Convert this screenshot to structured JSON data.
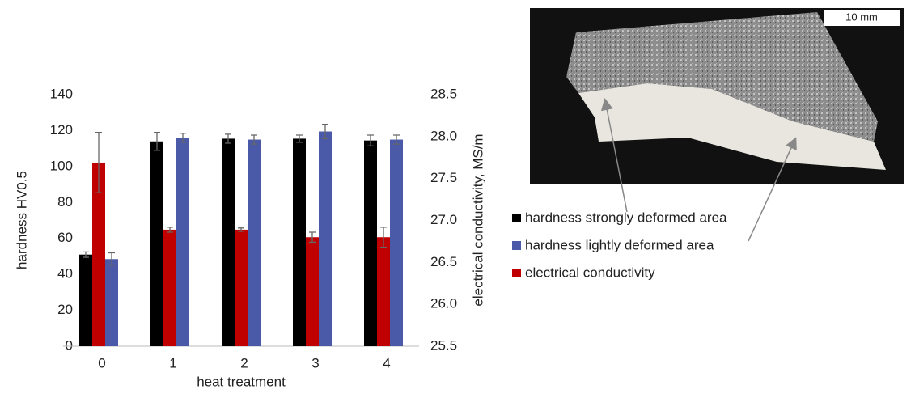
{
  "chart_data": {
    "type": "bar",
    "x_label": "heat treatment",
    "y_label": "hardness HV0.5",
    "y2_label": "electrical conductivity, MS/m",
    "categories": [
      "0",
      "1",
      "2",
      "3",
      "4"
    ],
    "ylim": [
      0,
      140
    ],
    "yticks": [
      0,
      20,
      40,
      60,
      80,
      100,
      120,
      140
    ],
    "y2lim": [
      25.5,
      28.5
    ],
    "y2ticks": [
      25.5,
      {
        "value": 26,
        "label": "26.0"
      },
      26.5,
      {
        "value": 27,
        "label": "27.0"
      },
      27.5,
      {
        "value": 28,
        "label": "28.0"
      },
      28.5
    ],
    "series": [
      {
        "name": "hardness strongly deformed area",
        "color": "#000000",
        "values": [
          51,
          114,
          115.5,
          115.5,
          114.5
        ],
        "errors": [
          1.5,
          5,
          2.5,
          2,
          3
        ]
      },
      {
        "name": "hardness lightly deformed area",
        "color": "#4a5aa8",
        "values": [
          48.5,
          116,
          115,
          119.5,
          115
        ],
        "errors": [
          3.5,
          2.5,
          2.5,
          4,
          2.5
        ]
      },
      {
        "name": "electrical conductivity",
        "color": "#c00000",
        "axis": "y2",
        "values": [
          27.69,
          26.89,
          26.89,
          26.8,
          26.8
        ],
        "errors": [
          0.36,
          0.03,
          0.02,
          0.06,
          0.12
        ]
      }
    ]
  },
  "photo": {
    "scale_bar": "10 mm"
  }
}
